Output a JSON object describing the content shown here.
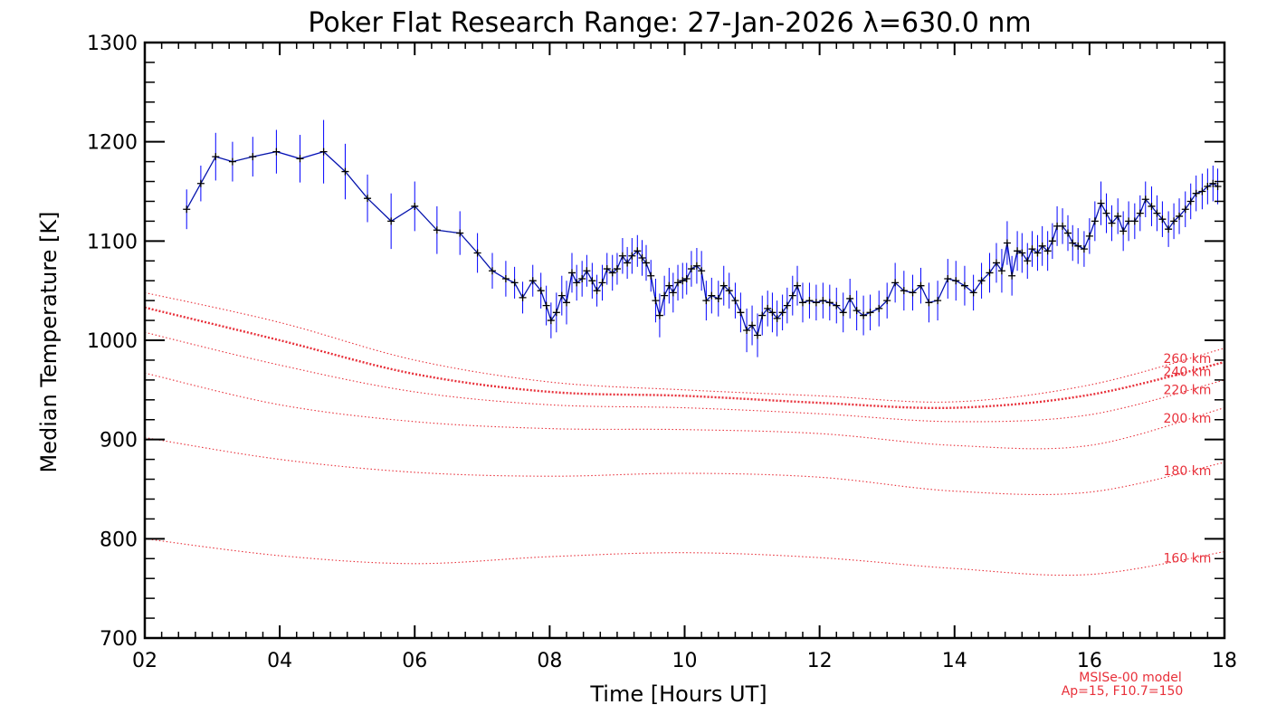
{
  "chart_data": {
    "type": "line",
    "title": "Poker Flat Research Range: 27-Jan-2026 λ=630.0 nm",
    "xlabel": "Time [Hours UT]",
    "ylabel": "Median Temperature [K]",
    "xlim": [
      2,
      18
    ],
    "ylim": [
      700,
      1300
    ],
    "xticks": [
      2,
      4,
      6,
      8,
      10,
      12,
      14,
      16,
      18
    ],
    "xtick_labels": [
      "02",
      "04",
      "06",
      "08",
      "10",
      "12",
      "14",
      "16",
      "18"
    ],
    "yticks": [
      700,
      800,
      900,
      1000,
      1100,
      1200,
      1300
    ],
    "ytick_labels": [
      "700",
      "800",
      "900",
      "1000",
      "1100",
      "1200",
      "1300"
    ],
    "grid": false,
    "observed": {
      "line_color": "#0000ff",
      "marker_color": "#000000",
      "errorbar_color": "#0000ff",
      "points": [
        [
          2.62,
          1132,
          20
        ],
        [
          2.83,
          1158,
          18
        ],
        [
          3.05,
          1185,
          24
        ],
        [
          3.3,
          1180,
          20
        ],
        [
          3.6,
          1185,
          20
        ],
        [
          3.95,
          1190,
          22
        ],
        [
          4.3,
          1183,
          24
        ],
        [
          4.65,
          1190,
          32
        ],
        [
          4.97,
          1170,
          28
        ],
        [
          5.3,
          1143,
          24
        ],
        [
          5.65,
          1120,
          28
        ],
        [
          6.0,
          1135,
          25
        ],
        [
          6.33,
          1111,
          24
        ],
        [
          6.67,
          1108,
          22
        ],
        [
          6.93,
          1088,
          20
        ],
        [
          7.15,
          1070,
          18
        ],
        [
          7.35,
          1062,
          18
        ],
        [
          7.48,
          1058,
          16
        ],
        [
          7.6,
          1043,
          16
        ],
        [
          7.75,
          1060,
          16
        ],
        [
          7.87,
          1050,
          18
        ],
        [
          7.95,
          1035,
          20
        ],
        [
          8.02,
          1020,
          18
        ],
        [
          8.1,
          1028,
          20
        ],
        [
          8.18,
          1045,
          20
        ],
        [
          8.25,
          1038,
          22
        ],
        [
          8.33,
          1068,
          20
        ],
        [
          8.4,
          1058,
          18
        ],
        [
          8.48,
          1062,
          18
        ],
        [
          8.55,
          1070,
          16
        ],
        [
          8.63,
          1060,
          18
        ],
        [
          8.7,
          1050,
          16
        ],
        [
          8.78,
          1058,
          18
        ],
        [
          8.85,
          1072,
          16
        ],
        [
          8.93,
          1068,
          18
        ],
        [
          9.0,
          1072,
          16
        ],
        [
          9.08,
          1085,
          18
        ],
        [
          9.15,
          1078,
          16
        ],
        [
          9.22,
          1085,
          18
        ],
        [
          9.3,
          1090,
          16
        ],
        [
          9.37,
          1083,
          18
        ],
        [
          9.43,
          1078,
          18
        ],
        [
          9.5,
          1065,
          16
        ],
        [
          9.57,
          1040,
          22
        ],
        [
          9.63,
          1025,
          22
        ],
        [
          9.7,
          1045,
          20
        ],
        [
          9.77,
          1055,
          18
        ],
        [
          9.83,
          1048,
          20
        ],
        [
          9.9,
          1058,
          18
        ],
        [
          9.97,
          1060,
          18
        ],
        [
          10.03,
          1062,
          16
        ],
        [
          10.1,
          1072,
          18
        ],
        [
          10.18,
          1075,
          18
        ],
        [
          10.25,
          1070,
          20
        ],
        [
          10.32,
          1040,
          20
        ],
        [
          10.4,
          1045,
          18
        ],
        [
          10.5,
          1042,
          18
        ],
        [
          10.58,
          1055,
          20
        ],
        [
          10.66,
          1050,
          18
        ],
        [
          10.75,
          1040,
          18
        ],
        [
          10.83,
          1028,
          20
        ],
        [
          10.92,
          1010,
          22
        ],
        [
          11.0,
          1015,
          20
        ],
        [
          11.08,
          1005,
          22
        ],
        [
          11.15,
          1025,
          20
        ],
        [
          11.23,
          1032,
          18
        ],
        [
          11.3,
          1028,
          20
        ],
        [
          11.37,
          1022,
          18
        ],
        [
          11.45,
          1028,
          18
        ],
        [
          11.52,
          1035,
          18
        ],
        [
          11.6,
          1045,
          20
        ],
        [
          11.67,
          1055,
          20
        ],
        [
          11.75,
          1038,
          20
        ],
        [
          11.85,
          1040,
          18
        ],
        [
          11.95,
          1038,
          18
        ],
        [
          12.05,
          1040,
          18
        ],
        [
          12.15,
          1038,
          18
        ],
        [
          12.25,
          1035,
          18
        ],
        [
          12.35,
          1028,
          20
        ],
        [
          12.45,
          1042,
          20
        ],
        [
          12.55,
          1030,
          20
        ],
        [
          12.65,
          1025,
          20
        ],
        [
          12.75,
          1028,
          18
        ],
        [
          12.88,
          1032,
          18
        ],
        [
          13.0,
          1040,
          18
        ],
        [
          13.12,
          1058,
          20
        ],
        [
          13.25,
          1050,
          20
        ],
        [
          13.38,
          1048,
          18
        ],
        [
          13.5,
          1055,
          18
        ],
        [
          13.62,
          1038,
          20
        ],
        [
          13.75,
          1040,
          20
        ],
        [
          13.9,
          1062,
          20
        ],
        [
          14.02,
          1060,
          20
        ],
        [
          14.15,
          1055,
          20
        ],
        [
          14.28,
          1048,
          18
        ],
        [
          14.4,
          1060,
          18
        ],
        [
          14.52,
          1068,
          20
        ],
        [
          14.62,
          1078,
          20
        ],
        [
          14.7,
          1070,
          22
        ],
        [
          14.78,
          1098,
          22
        ],
        [
          14.85,
          1065,
          20
        ],
        [
          14.93,
          1090,
          20
        ],
        [
          15.0,
          1088,
          20
        ],
        [
          15.08,
          1080,
          18
        ],
        [
          15.15,
          1092,
          18
        ],
        [
          15.23,
          1088,
          18
        ],
        [
          15.3,
          1095,
          20
        ],
        [
          15.38,
          1090,
          20
        ],
        [
          15.45,
          1100,
          18
        ],
        [
          15.52,
          1115,
          20
        ],
        [
          15.6,
          1115,
          18
        ],
        [
          15.68,
          1108,
          18
        ],
        [
          15.75,
          1098,
          18
        ],
        [
          15.83,
          1095,
          18
        ],
        [
          15.92,
          1092,
          18
        ],
        [
          16.0,
          1105,
          18
        ],
        [
          16.08,
          1120,
          20
        ],
        [
          16.17,
          1138,
          22
        ],
        [
          16.25,
          1128,
          20
        ],
        [
          16.33,
          1118,
          18
        ],
        [
          16.42,
          1125,
          18
        ],
        [
          16.5,
          1110,
          20
        ],
        [
          16.58,
          1120,
          20
        ],
        [
          16.67,
          1120,
          18
        ],
        [
          16.75,
          1128,
          18
        ],
        [
          16.83,
          1142,
          18
        ],
        [
          16.92,
          1135,
          20
        ],
        [
          17.0,
          1128,
          18
        ],
        [
          17.08,
          1122,
          18
        ],
        [
          17.17,
          1112,
          18
        ],
        [
          17.25,
          1120,
          18
        ],
        [
          17.33,
          1125,
          18
        ],
        [
          17.42,
          1132,
          18
        ],
        [
          17.5,
          1140,
          18
        ],
        [
          17.58,
          1148,
          18
        ],
        [
          17.67,
          1150,
          18
        ],
        [
          17.75,
          1155,
          18
        ],
        [
          17.83,
          1158,
          18
        ],
        [
          17.9,
          1155,
          18
        ]
      ]
    },
    "model": {
      "name": "MSISe-00 model",
      "params": "Ap=15, F10.7=150",
      "color": "#e8303a",
      "x": [
        2,
        4,
        6,
        8,
        10,
        12,
        14,
        16,
        18
      ],
      "curves": [
        {
          "label": "160 km",
          "values": [
            800,
            783,
            775,
            782,
            786,
            781,
            770,
            764,
            787
          ]
        },
        {
          "label": "180 km",
          "values": [
            902,
            880,
            867,
            863,
            866,
            862,
            848,
            847,
            877
          ]
        },
        {
          "label": "200 km",
          "values": [
            967,
            935,
            918,
            911,
            910,
            906,
            894,
            894,
            932
          ]
        },
        {
          "label": "220 km",
          "values": [
            1008,
            975,
            948,
            935,
            932,
            926,
            918,
            925,
            960
          ]
        },
        {
          "label": "240 km",
          "values": [
            1033,
            1000,
            966,
            948,
            944,
            937,
            932,
            945,
            978
          ]
        },
        {
          "label": "260 km",
          "values": [
            1048,
            1018,
            980,
            958,
            950,
            944,
            938,
            955,
            992
          ]
        }
      ]
    }
  }
}
